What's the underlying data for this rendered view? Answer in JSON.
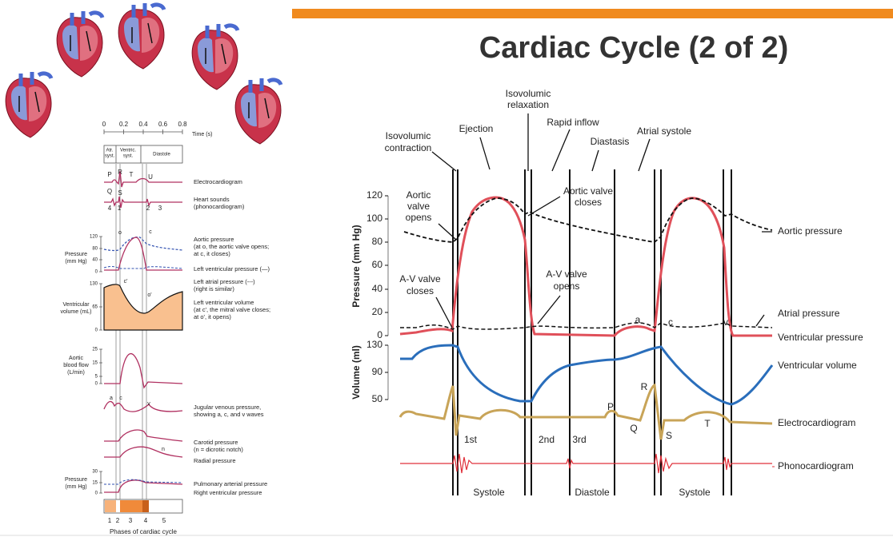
{
  "slide": {
    "title": "Cardiac Cycle (2 of 2)"
  },
  "left_figure": {
    "time_axis": {
      "label": "Time (s)",
      "ticks": [
        "0",
        "0.2",
        "0.4",
        "0.6",
        "0.8"
      ]
    },
    "phases": [
      [
        "Atr.",
        "syst."
      ],
      [
        "Ventric.",
        "syst."
      ],
      [
        "Diastole"
      ]
    ],
    "wave_letters": [
      "P",
      "R",
      "T",
      "U",
      "Q",
      "S"
    ],
    "sound_numbers": [
      "4",
      "1",
      "2",
      "3"
    ],
    "labels": [
      [
        "Electrocardiogram"
      ],
      [
        "Heart sounds",
        "(phonocardiogram)"
      ],
      [
        "Aortic pressure",
        "(at o, the aortic valve opens;",
        "at c, it closes)"
      ],
      [
        "Left ventricular pressure (—)"
      ],
      [
        "Left atrial pressure (---)",
        "(right is similar)"
      ],
      [
        "Left ventricular volume",
        "(at c', the mitral valve closes;",
        "at o', it opens)"
      ],
      [
        "Jugular venous pressure,",
        "showing a, c, and v waves"
      ],
      [
        "Carotid pressure",
        "(n = dicrotic notch)"
      ],
      [
        "Radial pressure"
      ],
      [
        "Pulmonary arterial pressure"
      ],
      [
        "Right ventricular pressure"
      ]
    ],
    "pressure_axis": {
      "label": [
        "Pressure",
        "(mm Hg)"
      ],
      "ticks": [
        "120",
        "80",
        "40",
        "0"
      ]
    },
    "volume_axis": {
      "label": [
        "Ventricular",
        "volume (mL)"
      ],
      "ticks": [
        "130",
        "65",
        "0"
      ]
    },
    "flow_axis": {
      "label": [
        "Aortic",
        "blood flow",
        "(L/min)"
      ],
      "ticks": [
        "25",
        "15",
        "5",
        "0"
      ]
    },
    "pulmonary_axis": {
      "label": [
        "Pressure",
        "(mm Hg)"
      ],
      "ticks": [
        "30",
        "15",
        "0"
      ]
    },
    "curve_letters": [
      "o",
      "c",
      "c'",
      "o'",
      "a",
      "c",
      "v",
      "n"
    ],
    "phases_axis": {
      "label": "Phases of cardiac cycle",
      "ticks": [
        "1",
        "2",
        "3",
        "4",
        "5"
      ]
    }
  },
  "right_figure": {
    "events": [
      [
        "Isovolumic",
        "contraction"
      ],
      [
        "Ejection"
      ],
      [
        "Isovolumic",
        "relaxation"
      ],
      [
        "Rapid inflow"
      ],
      [
        "Diastasis"
      ],
      [
        "Atrial systole"
      ]
    ],
    "pressure_axis": {
      "label": "Pressure (mm Hg)",
      "ticks": [
        "120",
        "100",
        "80",
        "60",
        "40",
        "20",
        "0"
      ]
    },
    "volume_axis": {
      "label": "Volume (ml)",
      "ticks": [
        "130",
        "90",
        "50"
      ]
    },
    "annotations": [
      [
        "Aortic",
        "valve",
        "opens"
      ],
      [
        "Aortic valve",
        "closes"
      ],
      [
        "A-V valve",
        "closes"
      ],
      [
        "A-V valve",
        "opens"
      ]
    ],
    "curve_labels": [
      "Aortic pressure",
      "Atrial pressure",
      "Ventricular pressure",
      "Ventricular volume",
      "Electrocardiogram",
      "Phonocardiogram"
    ],
    "wave_letters": [
      "a",
      "c",
      "v",
      "P",
      "Q",
      "R",
      "S",
      "T"
    ],
    "heart_sounds": [
      "1st",
      "2nd",
      "3rd"
    ],
    "phases": [
      "Systole",
      "Diastole",
      "Systole"
    ]
  }
}
